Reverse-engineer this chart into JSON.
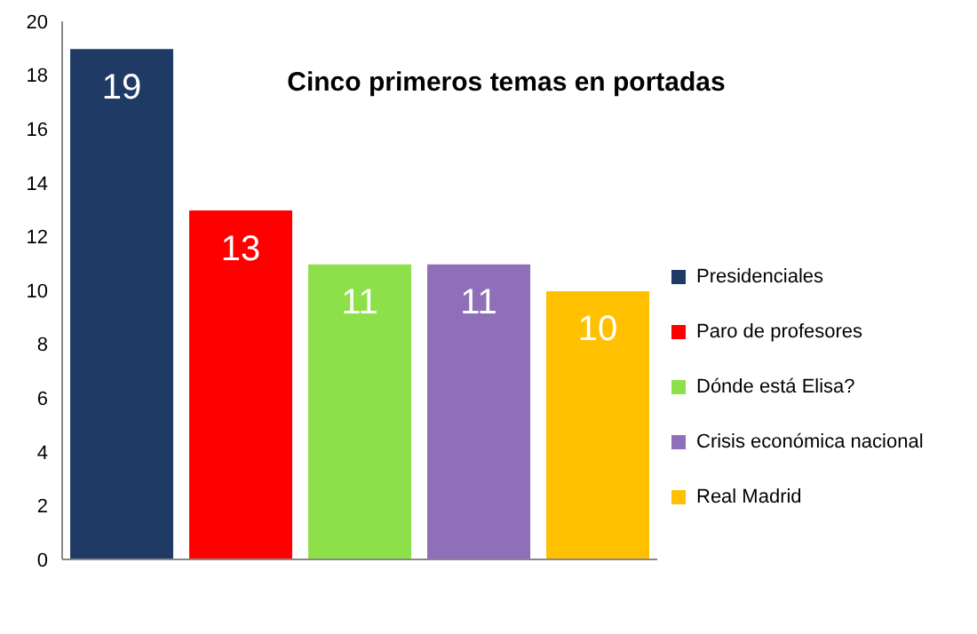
{
  "chart_data": {
    "type": "bar",
    "title": "Cinco primeros temas en portadas",
    "categories": [
      null,
      null,
      null,
      null,
      null
    ],
    "series": [
      {
        "name": "Presidenciales",
        "color": "#1f3a64",
        "values": [
          19,
          null,
          null,
          null,
          null
        ]
      },
      {
        "name": "Paro de profesores",
        "color": "#ff0000",
        "values": [
          null,
          13,
          null,
          null,
          null
        ]
      },
      {
        "name": "Dónde está Elisa?",
        "color": "#8ee04a",
        "values": [
          null,
          null,
          11,
          null,
          null
        ]
      },
      {
        "name": "Crisis económica nacional",
        "color": "#8e6fb8",
        "values": [
          null,
          null,
          null,
          11,
          null
        ]
      },
      {
        "name": "Real Madrid",
        "color": "#ffc000",
        "values": [
          null,
          null,
          null,
          null,
          10
        ]
      }
    ],
    "ylim": [
      0,
      20
    ],
    "yticks": [
      0,
      2,
      4,
      6,
      8,
      10,
      12,
      14,
      16,
      18,
      20
    ],
    "tick_labels": "y",
    "legend": "right",
    "data_labels": true
  }
}
